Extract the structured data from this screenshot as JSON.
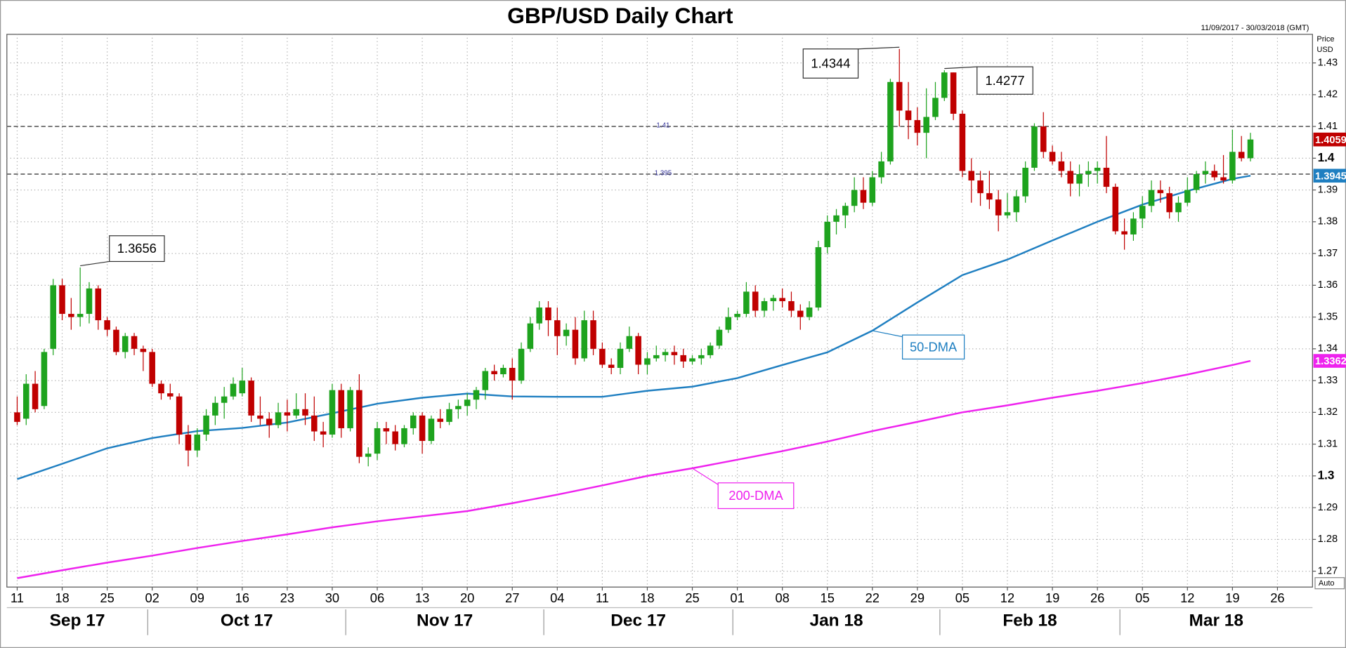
{
  "chart_data": {
    "type": "candlestick",
    "title": "GBP/USD Daily Chart",
    "subtitle": "11/09/2017 - 30/03/2018 (GMT)",
    "y_label": "Price",
    "y_unit": "USD",
    "scale_mode": "Auto",
    "up_color": "#1ea31e",
    "down_color": "#c00000",
    "grid": true,
    "ylim": [
      1.265,
      1.439
    ],
    "yticks": [
      1.27,
      1.28,
      1.29,
      1.3,
      1.31,
      1.32,
      1.33,
      1.34,
      1.35,
      1.36,
      1.37,
      1.38,
      1.39,
      1.4,
      1.41,
      1.42,
      1.43
    ],
    "hlines": [
      1.41,
      1.395
    ],
    "x": [
      "2017-09-11",
      "2017-09-12",
      "2017-09-13",
      "2017-09-14",
      "2017-09-15",
      "2017-09-18",
      "2017-09-19",
      "2017-09-20",
      "2017-09-21",
      "2017-09-22",
      "2017-09-25",
      "2017-09-26",
      "2017-09-27",
      "2017-09-28",
      "2017-09-29",
      "2017-10-02",
      "2017-10-03",
      "2017-10-04",
      "2017-10-05",
      "2017-10-06",
      "2017-10-09",
      "2017-10-10",
      "2017-10-11",
      "2017-10-12",
      "2017-10-13",
      "2017-10-16",
      "2017-10-17",
      "2017-10-18",
      "2017-10-19",
      "2017-10-20",
      "2017-10-23",
      "2017-10-24",
      "2017-10-25",
      "2017-10-26",
      "2017-10-27",
      "2017-10-30",
      "2017-10-31",
      "2017-11-01",
      "2017-11-02",
      "2017-11-03",
      "2017-11-06",
      "2017-11-07",
      "2017-11-08",
      "2017-11-09",
      "2017-11-10",
      "2017-11-13",
      "2017-11-14",
      "2017-11-15",
      "2017-11-16",
      "2017-11-17",
      "2017-11-20",
      "2017-11-21",
      "2017-11-22",
      "2017-11-23",
      "2017-11-24",
      "2017-11-27",
      "2017-11-28",
      "2017-11-29",
      "2017-11-30",
      "2017-12-01",
      "2017-12-04",
      "2017-12-05",
      "2017-12-06",
      "2017-12-07",
      "2017-12-08",
      "2017-12-11",
      "2017-12-12",
      "2017-12-13",
      "2017-12-14",
      "2017-12-15",
      "2017-12-18",
      "2017-12-19",
      "2017-12-20",
      "2017-12-21",
      "2017-12-22",
      "2017-12-25",
      "2017-12-26",
      "2017-12-27",
      "2017-12-28",
      "2017-12-29",
      "2018-01-01",
      "2018-01-02",
      "2018-01-03",
      "2018-01-04",
      "2018-01-05",
      "2018-01-08",
      "2018-01-09",
      "2018-01-10",
      "2018-01-11",
      "2018-01-12",
      "2018-01-15",
      "2018-01-16",
      "2018-01-17",
      "2018-01-18",
      "2018-01-19",
      "2018-01-22",
      "2018-01-23",
      "2018-01-24",
      "2018-01-25",
      "2018-01-26",
      "2018-01-29",
      "2018-01-30",
      "2018-01-31",
      "2018-02-01",
      "2018-02-02",
      "2018-02-05",
      "2018-02-06",
      "2018-02-07",
      "2018-02-08",
      "2018-02-09",
      "2018-02-12",
      "2018-02-13",
      "2018-02-14",
      "2018-02-15",
      "2018-02-16",
      "2018-02-19",
      "2018-02-20",
      "2018-02-21",
      "2018-02-22",
      "2018-02-23",
      "2018-02-26",
      "2018-02-27",
      "2018-02-28",
      "2018-03-01",
      "2018-03-02",
      "2018-03-05",
      "2018-03-06",
      "2018-03-07",
      "2018-03-08",
      "2018-03-09",
      "2018-03-12",
      "2018-03-13",
      "2018-03-14",
      "2018-03-15",
      "2018-03-16",
      "2018-03-19",
      "2018-03-20",
      "2018-03-21"
    ],
    "open": [
      1.32,
      1.318,
      1.329,
      1.322,
      1.34,
      1.36,
      1.351,
      1.35,
      1.351,
      1.359,
      1.349,
      1.346,
      1.339,
      1.344,
      1.34,
      1.339,
      1.329,
      1.326,
      1.325,
      1.313,
      1.308,
      1.313,
      1.319,
      1.323,
      1.325,
      1.326,
      1.33,
      1.319,
      1.318,
      1.316,
      1.32,
      1.319,
      1.321,
      1.319,
      1.314,
      1.313,
      1.327,
      1.315,
      1.327,
      1.306,
      1.307,
      1.315,
      1.314,
      1.31,
      1.315,
      1.319,
      1.311,
      1.318,
      1.317,
      1.321,
      1.322,
      1.324,
      1.327,
      1.333,
      1.332,
      1.334,
      1.33,
      1.34,
      1.348,
      1.353,
      1.349,
      1.344,
      1.346,
      1.337,
      1.349,
      1.34,
      1.335,
      1.334,
      1.34,
      1.344,
      1.335,
      1.337,
      1.338,
      1.339,
      1.338,
      1.336,
      1.337,
      1.338,
      1.341,
      1.346,
      1.35,
      1.351,
      1.358,
      1.352,
      1.355,
      1.356,
      1.355,
      1.352,
      1.35,
      1.353,
      1.372,
      1.38,
      1.382,
      1.385,
      1.39,
      1.386,
      1.394,
      1.399,
      1.424,
      1.415,
      1.412,
      1.408,
      1.413,
      1.419,
      1.427,
      1.414,
      1.396,
      1.393,
      1.389,
      1.387,
      1.382,
      1.383,
      1.388,
      1.397,
      1.41,
      1.402,
      1.399,
      1.396,
      1.392,
      1.395,
      1.396,
      1.397,
      1.391,
      1.377,
      1.376,
      1.381,
      1.385,
      1.39,
      1.389,
      1.383,
      1.386,
      1.39,
      1.395,
      1.396,
      1.394,
      1.393,
      1.402,
      1.4
    ],
    "high": [
      1.325,
      1.332,
      1.333,
      1.34,
      1.362,
      1.362,
      1.356,
      1.3656,
      1.361,
      1.36,
      1.35,
      1.347,
      1.345,
      1.345,
      1.341,
      1.34,
      1.33,
      1.329,
      1.326,
      1.316,
      1.315,
      1.321,
      1.325,
      1.328,
      1.331,
      1.334,
      1.331,
      1.325,
      1.32,
      1.323,
      1.324,
      1.326,
      1.326,
      1.325,
      1.317,
      1.329,
      1.329,
      1.328,
      1.332,
      1.309,
      1.317,
      1.317,
      1.316,
      1.316,
      1.32,
      1.32,
      1.319,
      1.321,
      1.323,
      1.324,
      1.326,
      1.328,
      1.334,
      1.335,
      1.335,
      1.337,
      1.342,
      1.35,
      1.355,
      1.355,
      1.353,
      1.348,
      1.35,
      1.352,
      1.352,
      1.342,
      1.337,
      1.342,
      1.347,
      1.345,
      1.339,
      1.341,
      1.34,
      1.341,
      1.34,
      1.338,
      1.34,
      1.342,
      1.347,
      1.353,
      1.352,
      1.361,
      1.36,
      1.356,
      1.357,
      1.359,
      1.358,
      1.354,
      1.355,
      1.374,
      1.382,
      1.384,
      1.386,
      1.394,
      1.394,
      1.396,
      1.402,
      1.425,
      1.4344,
      1.424,
      1.416,
      1.422,
      1.424,
      1.4277,
      1.427,
      1.415,
      1.4,
      1.396,
      1.396,
      1.39,
      1.389,
      1.39,
      1.399,
      1.411,
      1.4145,
      1.404,
      1.402,
      1.399,
      1.398,
      1.399,
      1.399,
      1.407,
      1.392,
      1.381,
      1.383,
      1.388,
      1.393,
      1.393,
      1.391,
      1.388,
      1.394,
      1.396,
      1.399,
      1.398,
      1.401,
      1.409,
      1.407,
      1.408
    ],
    "low": [
      1.316,
      1.316,
      1.32,
      1.321,
      1.338,
      1.349,
      1.346,
      1.347,
      1.348,
      1.346,
      1.344,
      1.338,
      1.337,
      1.338,
      1.333,
      1.328,
      1.324,
      1.324,
      1.31,
      1.303,
      1.306,
      1.311,
      1.316,
      1.318,
      1.324,
      1.325,
      1.317,
      1.316,
      1.312,
      1.315,
      1.314,
      1.318,
      1.316,
      1.311,
      1.309,
      1.312,
      1.312,
      1.314,
      1.304,
      1.303,
      1.305,
      1.31,
      1.308,
      1.309,
      1.313,
      1.307,
      1.31,
      1.315,
      1.316,
      1.318,
      1.319,
      1.321,
      1.324,
      1.33,
      1.331,
      1.324,
      1.329,
      1.339,
      1.346,
      1.344,
      1.338,
      1.341,
      1.335,
      1.336,
      1.338,
      1.334,
      1.332,
      1.332,
      1.339,
      1.332,
      1.332,
      1.336,
      1.336,
      1.335,
      1.334,
      1.335,
      1.335,
      1.337,
      1.34,
      1.345,
      1.349,
      1.35,
      1.35,
      1.35,
      1.352,
      1.353,
      1.35,
      1.346,
      1.349,
      1.352,
      1.37,
      1.376,
      1.378,
      1.383,
      1.384,
      1.385,
      1.392,
      1.398,
      1.41,
      1.406,
      1.404,
      1.4,
      1.412,
      1.418,
      1.412,
      1.394,
      1.386,
      1.385,
      1.384,
      1.377,
      1.381,
      1.38,
      1.386,
      1.396,
      1.4,
      1.398,
      1.394,
      1.388,
      1.388,
      1.391,
      1.392,
      1.389,
      1.376,
      1.3712,
      1.374,
      1.378,
      1.383,
      1.386,
      1.381,
      1.38,
      1.385,
      1.389,
      1.392,
      1.393,
      1.392,
      1.392,
      1.399,
      1.399
    ],
    "close": [
      1.317,
      1.329,
      1.321,
      1.339,
      1.36,
      1.351,
      1.35,
      1.351,
      1.359,
      1.349,
      1.346,
      1.339,
      1.344,
      1.34,
      1.339,
      1.329,
      1.326,
      1.325,
      1.313,
      1.308,
      1.313,
      1.319,
      1.323,
      1.325,
      1.329,
      1.33,
      1.319,
      1.318,
      1.316,
      1.32,
      1.319,
      1.321,
      1.319,
      1.314,
      1.313,
      1.327,
      1.315,
      1.327,
      1.306,
      1.307,
      1.315,
      1.314,
      1.31,
      1.315,
      1.319,
      1.311,
      1.318,
      1.317,
      1.321,
      1.322,
      1.324,
      1.327,
      1.333,
      1.332,
      1.334,
      1.33,
      1.34,
      1.348,
      1.353,
      1.349,
      1.344,
      1.346,
      1.337,
      1.349,
      1.34,
      1.335,
      1.334,
      1.34,
      1.344,
      1.335,
      1.337,
      1.338,
      1.339,
      1.338,
      1.336,
      1.337,
      1.338,
      1.341,
      1.346,
      1.35,
      1.351,
      1.358,
      1.352,
      1.355,
      1.356,
      1.355,
      1.352,
      1.35,
      1.353,
      1.372,
      1.38,
      1.382,
      1.385,
      1.39,
      1.386,
      1.394,
      1.399,
      1.424,
      1.415,
      1.412,
      1.408,
      1.413,
      1.419,
      1.427,
      1.414,
      1.396,
      1.393,
      1.389,
      1.387,
      1.382,
      1.383,
      1.388,
      1.397,
      1.41,
      1.402,
      1.399,
      1.396,
      1.392,
      1.395,
      1.396,
      1.397,
      1.391,
      1.377,
      1.376,
      1.381,
      1.385,
      1.39,
      1.389,
      1.383,
      1.386,
      1.39,
      1.395,
      1.396,
      1.394,
      1.393,
      1.402,
      1.4,
      1.4059
    ],
    "lines": [
      {
        "name": "50-DMA",
        "color": "#1f7fc1",
        "x": [
          "2017-09-11",
          "2017-09-18",
          "2017-09-25",
          "2017-10-02",
          "2017-10-09",
          "2017-10-16",
          "2017-10-23",
          "2017-10-30",
          "2017-11-06",
          "2017-11-13",
          "2017-11-20",
          "2017-11-27",
          "2017-12-04",
          "2017-12-11",
          "2017-12-18",
          "2017-12-25",
          "2018-01-01",
          "2018-01-08",
          "2018-01-15",
          "2018-01-22",
          "2018-01-29",
          "2018-02-05",
          "2018-02-12",
          "2018-02-19",
          "2018-02-26",
          "2018-03-05",
          "2018-03-12",
          "2018-03-19",
          "2018-03-21"
        ],
        "values": [
          1.299,
          1.3038,
          1.3087,
          1.3119,
          1.3141,
          1.3151,
          1.3168,
          1.3197,
          1.3227,
          1.3246,
          1.3259,
          1.325,
          1.3249,
          1.3249,
          1.3268,
          1.3281,
          1.3308,
          1.3349,
          1.3389,
          1.3457,
          1.3546,
          1.3632,
          1.3681,
          1.3741,
          1.38,
          1.3854,
          1.3897,
          1.3935,
          1.3945
        ]
      },
      {
        "name": "200-DMA",
        "color": "#ee22ee",
        "x": [
          "2017-09-11",
          "2017-09-18",
          "2017-09-25",
          "2017-10-02",
          "2017-10-09",
          "2017-10-16",
          "2017-10-23",
          "2017-10-30",
          "2017-11-06",
          "2017-11-13",
          "2017-11-20",
          "2017-11-27",
          "2017-12-04",
          "2017-12-11",
          "2017-12-18",
          "2017-12-25",
          "2018-01-01",
          "2018-01-08",
          "2018-01-15",
          "2018-01-22",
          "2018-01-29",
          "2018-02-05",
          "2018-02-12",
          "2018-02-19",
          "2018-02-26",
          "2018-03-05",
          "2018-03-12",
          "2018-03-19",
          "2018-03-21"
        ],
        "values": [
          1.2678,
          1.2703,
          1.2727,
          1.2749,
          1.2773,
          1.2795,
          1.2816,
          1.2838,
          1.2857,
          1.2873,
          1.2889,
          1.2914,
          1.2941,
          1.297,
          1.3,
          1.3024,
          1.3051,
          1.3078,
          1.3108,
          1.3141,
          1.317,
          1.32,
          1.3222,
          1.3246,
          1.3268,
          1.3292,
          1.3319,
          1.3349,
          1.3362
        ]
      }
    ],
    "xticks": [
      {
        "value": "2017-09-11",
        "label": "11"
      },
      {
        "value": "2017-09-18",
        "label": "18"
      },
      {
        "value": "2017-09-25",
        "label": "25"
      },
      {
        "value": "2017-10-02",
        "label": "02"
      },
      {
        "value": "2017-10-09",
        "label": "09"
      },
      {
        "value": "2017-10-16",
        "label": "16"
      },
      {
        "value": "2017-10-23",
        "label": "23"
      },
      {
        "value": "2017-10-30",
        "label": "30"
      },
      {
        "value": "2017-11-06",
        "label": "06"
      },
      {
        "value": "2017-11-13",
        "label": "13"
      },
      {
        "value": "2017-11-20",
        "label": "20"
      },
      {
        "value": "2017-11-27",
        "label": "27"
      },
      {
        "value": "2017-12-04",
        "label": "04"
      },
      {
        "value": "2017-12-11",
        "label": "11"
      },
      {
        "value": "2017-12-18",
        "label": "18"
      },
      {
        "value": "2017-12-25",
        "label": "25"
      },
      {
        "value": "2018-01-01",
        "label": "01"
      },
      {
        "value": "2018-01-08",
        "label": "08"
      },
      {
        "value": "2018-01-15",
        "label": "15"
      },
      {
        "value": "2018-01-22",
        "label": "22"
      },
      {
        "value": "2018-01-29",
        "label": "29"
      },
      {
        "value": "2018-02-05",
        "label": "05"
      },
      {
        "value": "2018-02-12",
        "label": "12"
      },
      {
        "value": "2018-02-19",
        "label": "19"
      },
      {
        "value": "2018-02-26",
        "label": "26"
      },
      {
        "value": "2018-03-05",
        "label": "05"
      },
      {
        "value": "2018-03-12",
        "label": "12"
      },
      {
        "value": "2018-03-19",
        "label": "19"
      },
      {
        "value": "2018-03-26",
        "label": "26"
      }
    ],
    "month_labels": [
      {
        "value": "2017-09",
        "label": "Sep 17"
      },
      {
        "value": "2017-10",
        "label": "Oct 17"
      },
      {
        "value": "2017-11",
        "label": "Nov 17"
      },
      {
        "value": "2017-12",
        "label": "Dec 17"
      },
      {
        "value": "2018-01",
        "label": "Jan 18"
      },
      {
        "value": "2018-02",
        "label": "Feb 18"
      },
      {
        "value": "2018-03",
        "label": "Mar 18"
      }
    ]
  }
}
